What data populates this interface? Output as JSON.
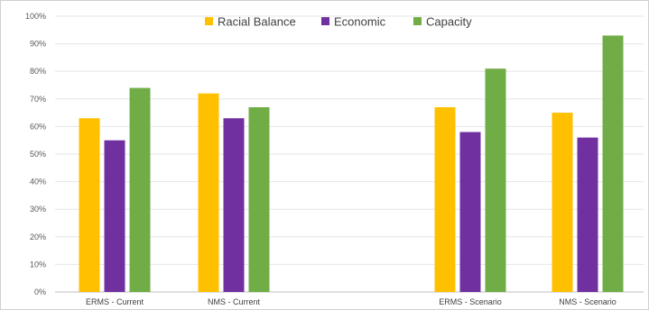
{
  "chart_data": {
    "type": "bar",
    "title": "",
    "xlabel": "",
    "ylabel": "",
    "ylim": [
      0,
      100
    ],
    "yticks": [
      "0%",
      "10%",
      "20%",
      "30%",
      "40%",
      "50%",
      "60%",
      "70%",
      "80%",
      "90%",
      "100%"
    ],
    "y_unit": "%",
    "grid": true,
    "legend_position": "top",
    "categories": [
      "ERMS - Current",
      "NMS - Current",
      "",
      "ERMS - Scenario",
      "NMS - Scenario"
    ],
    "series": [
      {
        "name": "Racial Balance",
        "color": "#FFC000",
        "values": [
          63,
          72,
          null,
          67,
          65
        ]
      },
      {
        "name": "Economic",
        "color": "#7030A0",
        "values": [
          55,
          63,
          null,
          58,
          56
        ]
      },
      {
        "name": "Capacity",
        "color": "#70AD47",
        "values": [
          74,
          67,
          null,
          81,
          93
        ]
      }
    ]
  }
}
